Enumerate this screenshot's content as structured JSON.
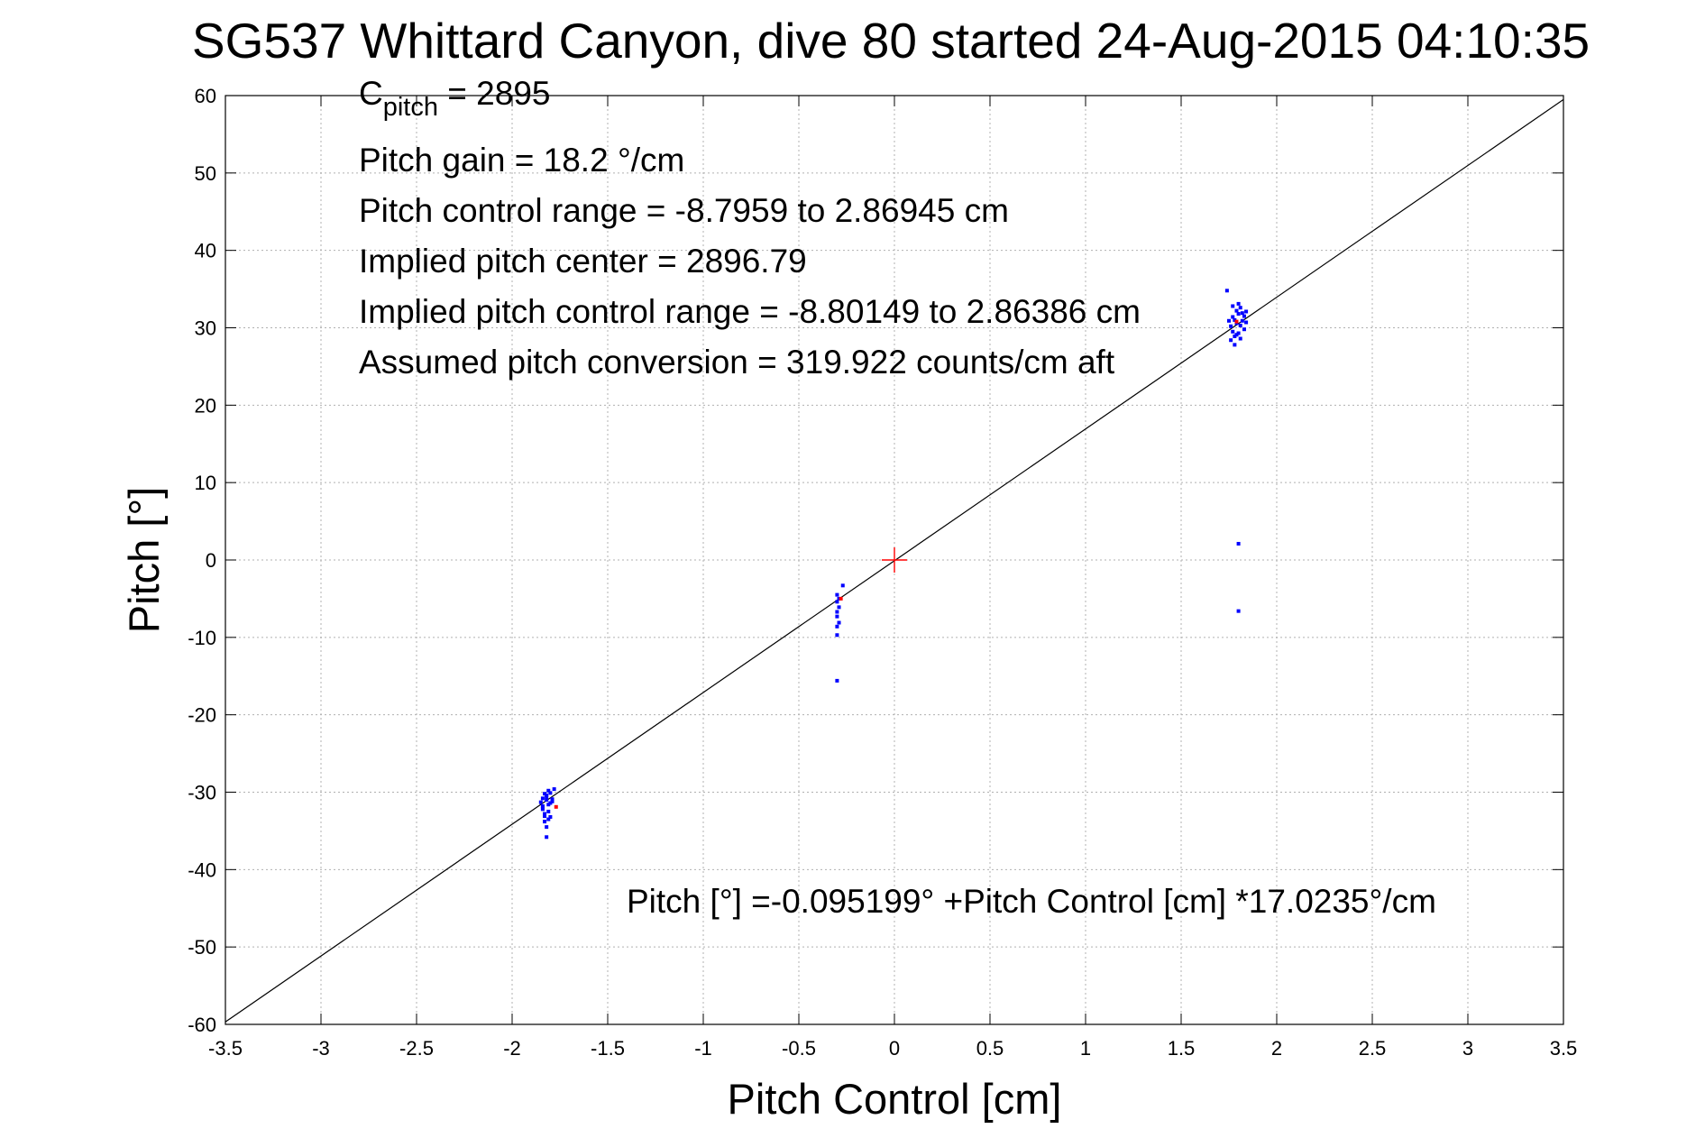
{
  "chart_data": {
    "type": "scatter",
    "title": "SG537 Whittard Canyon, dive 80 started 24-Aug-2015 04:10:35",
    "xlabel": "Pitch Control [cm]",
    "ylabel": "Pitch [°]",
    "xlim": [
      -3.5,
      3.5
    ],
    "ylim": [
      -60,
      60
    ],
    "xticks": [
      -3.5,
      -3,
      -2.5,
      -2,
      -1.5,
      -1,
      -0.5,
      0,
      0.5,
      1,
      1.5,
      2,
      2.5,
      3,
      3.5
    ],
    "yticks": [
      -60,
      -50,
      -40,
      -30,
      -20,
      -10,
      0,
      10,
      20,
      30,
      40,
      50,
      60
    ],
    "xtick_labels": [
      "-3.5",
      "-3",
      "-2.5",
      "-2",
      "-1.5",
      "-1",
      "-0.5",
      "0",
      "0.5",
      "1",
      "1.5",
      "2",
      "2.5",
      "3",
      "3.5"
    ],
    "ytick_labels": [
      "-60",
      "-50",
      "-40",
      "-30",
      "-20",
      "-10",
      "0",
      "10",
      "20",
      "30",
      "40",
      "50",
      "60"
    ],
    "grid": true,
    "colors": {
      "observed": "#0000ff",
      "highlight": "#ff0000",
      "fit": "#000000"
    },
    "fit_line": {
      "intercept": -0.095199,
      "slope": 17.0235
    },
    "center_marker": {
      "x": 0,
      "y": 0
    },
    "series": [
      {
        "marker_color": "#0000ff",
        "points": [
          [
            -1.83,
            -30.2
          ],
          [
            -1.82,
            -31.0
          ],
          [
            -1.84,
            -31.8
          ],
          [
            -1.81,
            -32.5
          ],
          [
            -1.83,
            -33.1
          ],
          [
            -1.82,
            -30.6
          ],
          [
            -1.8,
            -31.4
          ],
          [
            -1.84,
            -32.0
          ],
          [
            -1.81,
            -29.8
          ],
          [
            -1.83,
            -33.8
          ],
          [
            -1.82,
            -34.5
          ],
          [
            -1.8,
            -30.1
          ],
          [
            -1.79,
            -31.2
          ],
          [
            -1.84,
            -30.8
          ],
          [
            -1.83,
            -32.8
          ],
          [
            -1.81,
            -31.6
          ],
          [
            -1.82,
            -35.8
          ],
          [
            -1.78,
            -29.6
          ],
          [
            -1.8,
            -33.2
          ],
          [
            -1.85,
            -31.3
          ],
          [
            -1.84,
            -32.2
          ],
          [
            -1.82,
            -30.4
          ],
          [
            -1.81,
            -33.5
          ],
          [
            -1.79,
            -30.9
          ],
          [
            -0.3,
            -4.5
          ],
          [
            -0.3,
            -5.4
          ],
          [
            -0.29,
            -6.1
          ],
          [
            -0.3,
            -6.7
          ],
          [
            -0.3,
            -7.3
          ],
          [
            -0.29,
            -8.1
          ],
          [
            -0.3,
            -8.6
          ],
          [
            -0.3,
            -9.7
          ],
          [
            -0.27,
            -3.3
          ],
          [
            -0.29,
            -5.0
          ],
          [
            -0.3,
            -15.6
          ],
          [
            1.74,
            34.8
          ],
          [
            1.76,
            30.2
          ],
          [
            1.77,
            29.5
          ],
          [
            1.78,
            31.0
          ],
          [
            1.79,
            30.6
          ],
          [
            1.8,
            31.8
          ],
          [
            1.81,
            32.6
          ],
          [
            1.82,
            30.9
          ],
          [
            1.83,
            31.5
          ],
          [
            1.84,
            32.1
          ],
          [
            1.78,
            28.9
          ],
          [
            1.8,
            29.3
          ],
          [
            1.77,
            31.4
          ],
          [
            1.79,
            32.2
          ],
          [
            1.81,
            30.3
          ],
          [
            1.83,
            29.8
          ],
          [
            1.76,
            28.4
          ],
          [
            1.78,
            27.8
          ],
          [
            1.8,
            33.1
          ],
          [
            1.82,
            31.9
          ],
          [
            1.84,
            30.7
          ],
          [
            1.75,
            30.9
          ],
          [
            1.79,
            29.1
          ],
          [
            1.81,
            28.6
          ],
          [
            1.77,
            32.8
          ],
          [
            1.8,
            2.1
          ],
          [
            1.8,
            -6.6
          ]
        ]
      },
      {
        "marker_color": "#ff0000",
        "points": [
          [
            -1.77,
            -31.9
          ],
          [
            -0.28,
            -5.0
          ],
          [
            1.79,
            30.8
          ]
        ]
      }
    ],
    "annotations": {
      "c_pitch_base": "C",
      "c_pitch_sub": "pitch",
      "c_pitch_rest": " = 2895",
      "lines": [
        "Pitch gain = 18.2 °/cm",
        "Pitch control range = -8.7959 to 2.86945 cm",
        "Implied pitch center = 2896.79",
        "Implied pitch control range = -8.80149 to 2.86386 cm",
        "Assumed pitch conversion = 319.922 counts/cm aft"
      ],
      "equation": "Pitch [°] =-0.095199° +Pitch Control [cm] *17.0235°/cm"
    }
  }
}
